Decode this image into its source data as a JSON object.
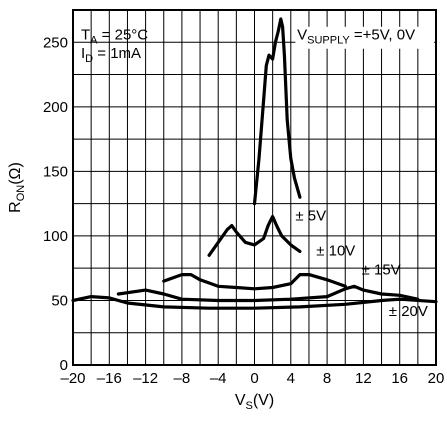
{
  "chart_data": {
    "type": "line",
    "title": "",
    "xlabel": {
      "main": "V",
      "sub": "S",
      "unit": "(V)"
    },
    "ylabel": {
      "main": "R",
      "sub": "ON",
      "unit": "(Ω)"
    },
    "xlim": [
      -20,
      20
    ],
    "ylim": [
      0,
      275
    ],
    "x_ticks": [
      -20,
      -16,
      -12,
      -8,
      -4,
      0,
      4,
      8,
      12,
      16,
      20
    ],
    "x_tick_labels": [
      "–20",
      "–16",
      "–12",
      "–8",
      "–4",
      "0",
      "4",
      "8",
      "12",
      "16",
      "20"
    ],
    "y_ticks": [
      0,
      50,
      100,
      150,
      200,
      250
    ],
    "y_tick_labels": [
      "0",
      "50",
      "100",
      "150",
      "200",
      "250"
    ],
    "grid": true,
    "conditions": {
      "ta": {
        "main": "T",
        "sub": "A",
        "rest": " = 25°C"
      },
      "id": {
        "main": "I",
        "sub": "D",
        "rest": " = 1mA"
      },
      "vsupply": {
        "main": "V",
        "sub": "SUPPLY",
        "rest": " =+5V, 0V"
      }
    },
    "series": [
      {
        "name": "± 5V",
        "x": [
          0,
          0.5,
          1.0,
          1.3,
          1.6,
          2.0,
          2.3,
          2.6,
          2.9,
          3.1,
          3.3,
          3.6,
          4.0,
          4.4,
          5.0
        ],
        "y": [
          125,
          160,
          205,
          232,
          240,
          237,
          250,
          258,
          268,
          262,
          240,
          190,
          160,
          145,
          130
        ]
      },
      {
        "name": "± 10V",
        "x": [
          -5,
          -4,
          -3,
          -2.5,
          -2,
          -1,
          0,
          1,
          1.5,
          2,
          2.5,
          3,
          4,
          5
        ],
        "y": [
          85,
          95,
          105,
          108,
          103,
          95,
          93,
          98,
          108,
          115,
          107,
          100,
          93,
          88
        ]
      },
      {
        "name": "± 15V",
        "x": [
          -10,
          -8,
          -7,
          -6,
          -4,
          -2,
          0,
          2,
          4,
          5,
          6,
          8,
          10
        ],
        "y": [
          65,
          70,
          70,
          66,
          61,
          60,
          59,
          60,
          63,
          70,
          70,
          66,
          61
        ]
      },
      {
        "name": "± 20V",
        "x": [
          -15,
          -12,
          -10,
          -8,
          -4,
          0,
          4,
          8,
          10,
          11,
          12,
          14,
          16,
          18
        ],
        "y": [
          55,
          58,
          55,
          51,
          50,
          50,
          51,
          53,
          59,
          61,
          58,
          55,
          54,
          51
        ]
      },
      {
        "name": "",
        "x": [
          -20,
          -18,
          -16,
          -14,
          -10,
          -5,
          0,
          5,
          10,
          14,
          16,
          20
        ],
        "y": [
          50,
          53,
          52,
          48,
          45,
          44,
          44,
          45,
          47,
          50,
          51,
          49
        ]
      }
    ]
  }
}
